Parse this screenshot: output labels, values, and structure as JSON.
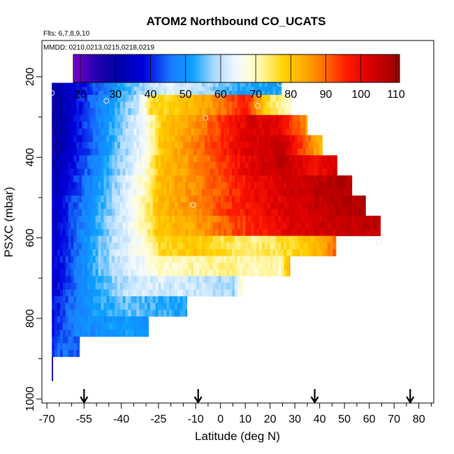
{
  "chart_data": {
    "type": "heatmap",
    "title": "ATOM2 Northbound CO_UCATS",
    "subtitle_flights": "Flts: 6,7,8,9,10",
    "subtitle_dates": "MMDD: 0210,0213,0215,0218,0219",
    "xlabel": "Latitude (deg N)",
    "ylabel": "PSXC (mbar)",
    "xlim": [
      -72,
      86
    ],
    "ylim": [
      1010,
      110
    ],
    "x_ticks": [
      -70,
      -55,
      -40,
      -25,
      -10,
      0,
      10,
      20,
      30,
      40,
      50,
      60,
      70,
      80
    ],
    "y_ticks": [
      200,
      400,
      600,
      800,
      1000
    ],
    "colorbar": {
      "range": [
        18,
        111
      ],
      "ticks": [
        20,
        30,
        40,
        50,
        60,
        70,
        80,
        90,
        100,
        110
      ]
    },
    "colormap": [
      [
        18,
        "#7a00cc"
      ],
      [
        24,
        "#2a00b0"
      ],
      [
        30,
        "#0000a0"
      ],
      [
        38,
        "#0000dd"
      ],
      [
        46,
        "#1a7cff"
      ],
      [
        52,
        "#0aa0ff"
      ],
      [
        58,
        "#a8d8ff"
      ],
      [
        64,
        "#eef7ff"
      ],
      [
        68,
        "#fffde0"
      ],
      [
        72,
        "#fff59a"
      ],
      [
        78,
        "#ffd200"
      ],
      [
        84,
        "#ffaa00"
      ],
      [
        90,
        "#ff6a00"
      ],
      [
        96,
        "#ff1a00"
      ],
      [
        102,
        "#dd0000"
      ],
      [
        111,
        "#9a0000"
      ]
    ],
    "bands": [
      {
        "p_top": 215,
        "p_bot": 245,
        "x_start": -68,
        "x_end": 24.5,
        "cells": [
          [
            -68,
            30
          ],
          [
            -57,
            38
          ],
          [
            -50,
            44
          ],
          [
            -40,
            52
          ],
          [
            -30,
            59
          ],
          [
            -20,
            63
          ],
          [
            -5,
            58
          ],
          [
            10,
            52
          ],
          [
            24,
            52
          ]
        ]
      },
      {
        "p_top": 245,
        "p_bot": 295,
        "x_start": -68,
        "x_end": 28.5,
        "cells": [
          [
            -68,
            28
          ],
          [
            -58,
            38
          ],
          [
            -50,
            46
          ],
          [
            -40,
            55
          ],
          [
            -33,
            60
          ],
          [
            -28,
            76
          ],
          [
            -15,
            80
          ],
          [
            -2,
            86
          ],
          [
            10,
            97
          ],
          [
            20,
            75
          ],
          [
            28,
            70
          ]
        ]
      },
      {
        "p_top": 295,
        "p_bot": 345,
        "x_start": -68,
        "x_end": 35,
        "cells": [
          [
            -68,
            28
          ],
          [
            -58,
            38
          ],
          [
            -48,
            48
          ],
          [
            -40,
            57
          ],
          [
            -30,
            66
          ],
          [
            -24,
            79
          ],
          [
            -10,
            86
          ],
          [
            0,
            94
          ],
          [
            12,
            103
          ],
          [
            24,
            100
          ],
          [
            35,
            86
          ]
        ]
      },
      {
        "p_top": 345,
        "p_bot": 395,
        "x_start": -68,
        "x_end": 41,
        "cells": [
          [
            -68,
            28
          ],
          [
            -58,
            38
          ],
          [
            -48,
            48
          ],
          [
            -40,
            57
          ],
          [
            -30,
            66
          ],
          [
            -24,
            80
          ],
          [
            -10,
            88
          ],
          [
            0,
            95
          ],
          [
            12,
            103
          ],
          [
            25,
            105
          ],
          [
            35,
            90
          ],
          [
            41,
            82
          ]
        ]
      },
      {
        "p_top": 395,
        "p_bot": 445,
        "x_start": -68,
        "x_end": 47,
        "cells": [
          [
            -68,
            30
          ],
          [
            -58,
            40
          ],
          [
            -48,
            50
          ],
          [
            -40,
            58
          ],
          [
            -30,
            68
          ],
          [
            -25,
            80
          ],
          [
            -12,
            86
          ],
          [
            0,
            93
          ],
          [
            12,
            101
          ],
          [
            25,
            106
          ],
          [
            38,
            98
          ],
          [
            47,
            104
          ]
        ]
      },
      {
        "p_top": 445,
        "p_bot": 495,
        "x_start": -68,
        "x_end": 53,
        "cells": [
          [
            -68,
            32
          ],
          [
            -58,
            42
          ],
          [
            -48,
            52
          ],
          [
            -40,
            60
          ],
          [
            -30,
            70
          ],
          [
            -25,
            81
          ],
          [
            -12,
            86
          ],
          [
            0,
            92
          ],
          [
            15,
            100
          ],
          [
            30,
            104
          ],
          [
            45,
            108
          ],
          [
            53,
            106
          ]
        ]
      },
      {
        "p_top": 495,
        "p_bot": 545,
        "x_start": -68,
        "x_end": 58.5,
        "cells": [
          [
            -68,
            34
          ],
          [
            -58,
            44
          ],
          [
            -48,
            54
          ],
          [
            -38,
            62
          ],
          [
            -30,
            72
          ],
          [
            -25,
            81
          ],
          [
            -10,
            87
          ],
          [
            0,
            93
          ],
          [
            15,
            99
          ],
          [
            30,
            103
          ],
          [
            45,
            106
          ],
          [
            58,
            108
          ]
        ]
      },
      {
        "p_top": 545,
        "p_bot": 595,
        "x_start": -68,
        "x_end": 64.5,
        "cells": [
          [
            -68,
            34
          ],
          [
            -58,
            45
          ],
          [
            -48,
            55
          ],
          [
            -38,
            63
          ],
          [
            -30,
            72
          ],
          [
            -25,
            80
          ],
          [
            -10,
            84
          ],
          [
            0,
            90
          ],
          [
            15,
            96
          ],
          [
            30,
            102
          ],
          [
            45,
            104
          ],
          [
            64,
            106
          ]
        ]
      },
      {
        "p_top": 595,
        "p_bot": 645,
        "x_start": -68,
        "x_end": 46.5,
        "cells": [
          [
            -68,
            35
          ],
          [
            -58,
            45
          ],
          [
            -48,
            56
          ],
          [
            -38,
            63
          ],
          [
            -30,
            69
          ],
          [
            -25,
            76
          ],
          [
            -10,
            80
          ],
          [
            0,
            76
          ],
          [
            15,
            73
          ],
          [
            30,
            78
          ],
          [
            40,
            83
          ],
          [
            46,
            90
          ]
        ]
      },
      {
        "p_top": 645,
        "p_bot": 695,
        "x_start": -68,
        "x_end": 28,
        "cells": [
          [
            -68,
            35
          ],
          [
            -58,
            46
          ],
          [
            -48,
            56
          ],
          [
            -38,
            62
          ],
          [
            -30,
            66
          ],
          [
            -25,
            70
          ],
          [
            -10,
            71
          ],
          [
            0,
            72
          ],
          [
            15,
            71
          ],
          [
            24,
            70
          ],
          [
            28,
            84
          ]
        ]
      },
      {
        "p_top": 695,
        "p_bot": 745,
        "x_start": -68,
        "x_end": 9,
        "cells": [
          [
            -68,
            35
          ],
          [
            -58,
            46
          ],
          [
            -48,
            54
          ],
          [
            -38,
            60
          ],
          [
            -28,
            62
          ],
          [
            -15,
            61
          ],
          [
            -5,
            60
          ],
          [
            5,
            58
          ],
          [
            9,
            70
          ]
        ]
      },
      {
        "p_top": 745,
        "p_bot": 795,
        "x_start": -68,
        "x_end": -13.5,
        "cells": [
          [
            -68,
            38
          ],
          [
            -58,
            47
          ],
          [
            -48,
            53
          ],
          [
            -38,
            55
          ],
          [
            -28,
            54
          ],
          [
            -20,
            53
          ],
          [
            -13.5,
            52
          ]
        ]
      },
      {
        "p_top": 795,
        "p_bot": 845,
        "x_start": -68,
        "x_end": -29,
        "cells": [
          [
            -68,
            40
          ],
          [
            -58,
            48
          ],
          [
            -48,
            50
          ],
          [
            -38,
            51
          ],
          [
            -29,
            50
          ]
        ]
      },
      {
        "p_top": 845,
        "p_bot": 895,
        "x_start": -68,
        "x_end": -57,
        "cells": [
          [
            -68,
            42
          ],
          [
            -62,
            45
          ],
          [
            -57,
            44
          ]
        ]
      },
      {
        "p_top": 895,
        "p_bot": 955,
        "x_start": -68,
        "x_end": -67.6,
        "cells": [
          [
            -68,
            30
          ],
          [
            -67.6,
            30
          ]
        ]
      }
    ],
    "profile_markers": [
      {
        "lat": -68,
        "p": 240
      },
      {
        "lat": -46,
        "p": 260
      },
      {
        "lat": -28,
        "p": 242
      },
      {
        "lat": -6,
        "p": 302
      },
      {
        "lat": 15,
        "p": 272
      },
      {
        "lat": 24,
        "p": 217
      },
      {
        "lat": -11,
        "p": 518
      },
      {
        "lat": 64,
        "p": 610
      }
    ],
    "northbound_arrows": [
      -55,
      -9,
      38,
      76.5
    ]
  },
  "colors": {
    "marker_stroke": "#e8e8e8",
    "frame": "#000000",
    "background": "#ffffff"
  }
}
